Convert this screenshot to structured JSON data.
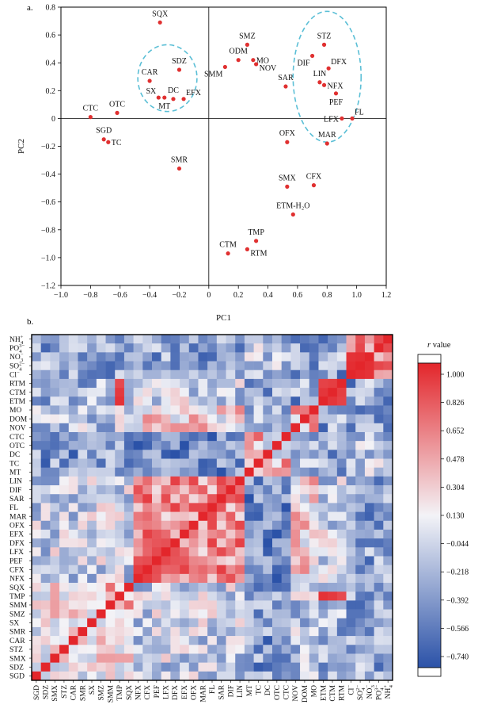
{
  "chart_data": [
    {
      "panel": "a.",
      "type": "scatter",
      "xlabel": "PC1",
      "ylabel": "PC2",
      "xlim": [
        -1.0,
        1.2
      ],
      "ylim": [
        -1.2,
        0.8
      ],
      "xticks": [
        -1.0,
        -0.8,
        -0.6,
        -0.4,
        -0.2,
        0,
        0.2,
        0.4,
        0.6,
        0.8,
        1.0,
        1.2
      ],
      "yticks": [
        0.8,
        0.6,
        0.4,
        0.2,
        0,
        -0.2,
        -0.4,
        -0.6,
        -0.8,
        -1.0,
        -1.2
      ],
      "point_color": "#e03030",
      "circle_color": "#5bbfd6",
      "points": [
        {
          "label": "SQX",
          "x": -0.33,
          "y": 0.69,
          "lpos": "above"
        },
        {
          "label": "SMZ",
          "x": 0.26,
          "y": 0.53,
          "lpos": "above"
        },
        {
          "label": "ODM",
          "x": 0.2,
          "y": 0.42,
          "lpos": "above"
        },
        {
          "label": "MO",
          "x": 0.3,
          "y": 0.42,
          "lpos": "right"
        },
        {
          "label": "NOV",
          "x": 0.32,
          "y": 0.39,
          "lpos": "right-low"
        },
        {
          "label": "SMM",
          "x": 0.11,
          "y": 0.37,
          "lpos": "below-left"
        },
        {
          "label": "SAR",
          "x": 0.52,
          "y": 0.23,
          "lpos": "above"
        },
        {
          "label": "STZ",
          "x": 0.78,
          "y": 0.53,
          "lpos": "above"
        },
        {
          "label": "DIF",
          "x": 0.7,
          "y": 0.45,
          "lpos": "below-left"
        },
        {
          "label": "DFX",
          "x": 0.81,
          "y": 0.36,
          "lpos": "above-right"
        },
        {
          "label": "LIN",
          "x": 0.75,
          "y": 0.26,
          "lpos": "above"
        },
        {
          "label": "NFX",
          "x": 0.78,
          "y": 0.24,
          "lpos": "right"
        },
        {
          "label": "PEF",
          "x": 0.86,
          "y": 0.18,
          "lpos": "below"
        },
        {
          "label": "LFX",
          "x": 0.9,
          "y": 0.0,
          "lpos": "left"
        },
        {
          "label": "FL",
          "x": 0.97,
          "y": 0.0,
          "lpos": "above-right"
        },
        {
          "label": "CAR",
          "x": -0.4,
          "y": 0.27,
          "lpos": "above"
        },
        {
          "label": "SDZ",
          "x": -0.2,
          "y": 0.35,
          "lpos": "above"
        },
        {
          "label": "SX",
          "x": -0.34,
          "y": 0.15,
          "lpos": "above-left"
        },
        {
          "label": "MT",
          "x": -0.3,
          "y": 0.15,
          "lpos": "below"
        },
        {
          "label": "DC",
          "x": -0.24,
          "y": 0.14,
          "lpos": "above"
        },
        {
          "label": "EFX",
          "x": -0.17,
          "y": 0.14,
          "lpos": "above-right"
        },
        {
          "label": "CTC",
          "x": -0.8,
          "y": 0.01,
          "lpos": "above"
        },
        {
          "label": "OTC",
          "x": -0.62,
          "y": 0.04,
          "lpos": "above"
        },
        {
          "label": "SGD",
          "x": -0.71,
          "y": -0.15,
          "lpos": "above"
        },
        {
          "label": "TC",
          "x": -0.68,
          "y": -0.17,
          "lpos": "right"
        },
        {
          "label": "OFX",
          "x": 0.53,
          "y": -0.17,
          "lpos": "above"
        },
        {
          "label": "MAR",
          "x": 0.8,
          "y": -0.18,
          "lpos": "above"
        },
        {
          "label": "SMR",
          "x": -0.2,
          "y": -0.36,
          "lpos": "above"
        },
        {
          "label": "SMX",
          "x": 0.53,
          "y": -0.49,
          "lpos": "above"
        },
        {
          "label": "CFX",
          "x": 0.71,
          "y": -0.48,
          "lpos": "above"
        },
        {
          "label": "ETM-H₂O",
          "x": 0.57,
          "y": -0.69,
          "lpos": "above"
        },
        {
          "label": "TMP",
          "x": 0.32,
          "y": -0.88,
          "lpos": "above"
        },
        {
          "label": "CTM",
          "x": 0.13,
          "y": -0.97,
          "lpos": "above"
        },
        {
          "label": "RTM",
          "x": 0.26,
          "y": -0.94,
          "lpos": "right-low"
        }
      ],
      "clusters": [
        {
          "cx": -0.28,
          "cy": 0.29,
          "rx": 0.2,
          "ry": 0.24
        },
        {
          "cx": 0.8,
          "cy": 0.3,
          "rx": 0.23,
          "ry": 0.47
        }
      ]
    },
    {
      "panel": "b.",
      "type": "heatmap",
      "rows": [
        "NH4+",
        "PO43-",
        "NO3-",
        "SO42-",
        "Cl-",
        "RTM",
        "CTM",
        "ETM",
        "MO",
        "DOM",
        "NOV",
        "CTC",
        "OTC",
        "DC",
        "TC",
        "MT",
        "LIN",
        "DIF",
        "SAR",
        "FL",
        "MAR",
        "OFX",
        "EFX",
        "DFX",
        "LFX",
        "PEF",
        "CFX",
        "NFX",
        "SQX",
        "TMP",
        "SMM",
        "SMZ",
        "SX",
        "SMR",
        "CAR",
        "STZ",
        "SMX",
        "SDZ",
        "SGD"
      ],
      "columns": [
        "SGD",
        "SDZ",
        "SMX",
        "STZ",
        "CAR",
        "SMR",
        "SX",
        "SMZ",
        "SMM",
        "TMP",
        "SQX",
        "NFX",
        "CFX",
        "PEF",
        "LFX",
        "DFX",
        "EFX",
        "OFX",
        "MAR",
        "FL",
        "SAR",
        "DIF",
        "LIN",
        "MT",
        "TC",
        "DC",
        "OTC",
        "CTC",
        "NOV",
        "DOM",
        "MO",
        "ETM",
        "CTM",
        "RTM",
        "Cl-",
        "SO42-",
        "NO3-",
        "PO43-",
        "NH4+"
      ],
      "row_labels": [
        {
          "t": "NH",
          "sub": "4",
          "sup": "+"
        },
        {
          "t": "PO",
          "sub": "4",
          "sup": "3−"
        },
        {
          "t": "NO",
          "sub": "3",
          "sup": "−"
        },
        {
          "t": "SO",
          "sub": "4",
          "sup": "2−"
        },
        {
          "t": "Cl",
          "sub": "",
          "sup": "−"
        },
        {
          "t": "RTM"
        },
        {
          "t": "CTM"
        },
        {
          "t": "ETM"
        },
        {
          "t": "MO"
        },
        {
          "t": "DOM"
        },
        {
          "t": "NOV"
        },
        {
          "t": "CTC"
        },
        {
          "t": "OTC"
        },
        {
          "t": "DC"
        },
        {
          "t": "TC"
        },
        {
          "t": "MT"
        },
        {
          "t": "LIN"
        },
        {
          "t": "DIF"
        },
        {
          "t": "SAR"
        },
        {
          "t": "FL"
        },
        {
          "t": "MAR"
        },
        {
          "t": "OFX"
        },
        {
          "t": "EFX"
        },
        {
          "t": "DFX"
        },
        {
          "t": "LFX"
        },
        {
          "t": "PEF"
        },
        {
          "t": "CFX"
        },
        {
          "t": "NFX"
        },
        {
          "t": "SQX"
        },
        {
          "t": "TMP"
        },
        {
          "t": "SMM"
        },
        {
          "t": "SMZ"
        },
        {
          "t": "SX"
        },
        {
          "t": "SMR"
        },
        {
          "t": "CAR"
        },
        {
          "t": "STZ"
        },
        {
          "t": "SMX"
        },
        {
          "t": "SDZ"
        },
        {
          "t": "SGD"
        }
      ],
      "col_labels": [
        {
          "t": "SGD"
        },
        {
          "t": "SDZ"
        },
        {
          "t": "SMX"
        },
        {
          "t": "STZ"
        },
        {
          "t": "CAR"
        },
        {
          "t": "SMR"
        },
        {
          "t": "SX"
        },
        {
          "t": "SMZ"
        },
        {
          "t": "SMM"
        },
        {
          "t": "TMP"
        },
        {
          "t": "SQX"
        },
        {
          "t": "NFX"
        },
        {
          "t": "CFX"
        },
        {
          "t": "PEF"
        },
        {
          "t": "LFX"
        },
        {
          "t": "DFX"
        },
        {
          "t": "EFX"
        },
        {
          "t": "OFX"
        },
        {
          "t": "MAR"
        },
        {
          "t": "FL"
        },
        {
          "t": "SAR"
        },
        {
          "t": "DIF"
        },
        {
          "t": "LIN"
        },
        {
          "t": "MT"
        },
        {
          "t": "TC"
        },
        {
          "t": "DC"
        },
        {
          "t": "OTC"
        },
        {
          "t": "CTC"
        },
        {
          "t": "NOV"
        },
        {
          "t": "DOM"
        },
        {
          "t": "MO"
        },
        {
          "t": "ETM"
        },
        {
          "t": "CTM"
        },
        {
          "t": "RTM"
        },
        {
          "t": "Cl",
          "sub": "",
          "sup": "−"
        },
        {
          "t": "SO",
          "sub": "4",
          "sup": "2−"
        },
        {
          "t": "NO",
          "sub": "3",
          "sup": "−"
        },
        {
          "t": "PO",
          "sub": "4",
          "sup": "3−"
        },
        {
          "t": "NH",
          "sub": "4",
          "sup": "+"
        }
      ],
      "groups": [
        [
          "SGD",
          "SDZ",
          "SMX",
          "STZ",
          "CAR",
          "SMR",
          "SX",
          "SMZ",
          "SMM",
          "TMP",
          "SQX"
        ],
        [
          "NFX",
          "CFX",
          "PEF",
          "LFX",
          "DFX",
          "EFX",
          "OFX",
          "MAR",
          "FL",
          "SAR",
          "DIF",
          "LIN"
        ],
        [
          "MT",
          "TC",
          "DC",
          "OTC",
          "CTC"
        ],
        [
          "NOV",
          "DOM",
          "MO"
        ],
        [
          "ETM",
          "CTM",
          "RTM"
        ],
        [
          "Cl-",
          "SO42-",
          "NO3-",
          "PO43-",
          "NH4+"
        ]
      ],
      "group_corr": [
        [
          0.15,
          -0.05,
          -0.35,
          -0.1,
          -0.2,
          -0.3
        ],
        [
          -0.05,
          0.55,
          -0.45,
          0.25,
          -0.05,
          -0.3
        ],
        [
          -0.35,
          -0.45,
          0.2,
          -0.2,
          -0.25,
          -0.1
        ],
        [
          -0.1,
          0.25,
          -0.2,
          0.1,
          -0.3,
          -0.25
        ],
        [
          -0.2,
          -0.05,
          -0.25,
          -0.3,
          0.7,
          -0.3
        ],
        [
          -0.3,
          -0.3,
          -0.1,
          -0.25,
          -0.3,
          0.6
        ]
      ],
      "strong_pairs": [
        {
          "a": "TMP",
          "b": "ETM",
          "v": 0.95
        },
        {
          "a": "TMP",
          "b": "CTM",
          "v": 0.92
        },
        {
          "a": "TMP",
          "b": "RTM",
          "v": 0.85
        },
        {
          "a": "ETM",
          "b": "CTM",
          "v": 0.93
        },
        {
          "a": "CTM",
          "b": "RTM",
          "v": 0.9
        },
        {
          "a": "ETM",
          "b": "RTM",
          "v": 0.88
        },
        {
          "a": "Cl-",
          "b": "SO42-",
          "v": 0.97
        },
        {
          "a": "Cl-",
          "b": "NO3-",
          "v": 0.95
        },
        {
          "a": "SO42-",
          "b": "NO3-",
          "v": 0.96
        },
        {
          "a": "PO43-",
          "b": "NH4+",
          "v": 0.85
        },
        {
          "a": "LFX",
          "b": "PEF",
          "v": 0.85
        },
        {
          "a": "DFX",
          "b": "PEF",
          "v": 0.8
        },
        {
          "a": "DFX",
          "b": "LFX",
          "v": 0.82
        },
        {
          "a": "FL",
          "b": "MAR",
          "v": 0.85
        },
        {
          "a": "FL",
          "b": "SAR",
          "v": 0.8
        },
        {
          "a": "DIF",
          "b": "SAR",
          "v": 0.78
        },
        {
          "a": "SQX",
          "b": "SMM",
          "v": 0.7
        },
        {
          "a": "TC",
          "b": "CTC",
          "v": 0.75
        },
        {
          "a": "MO",
          "b": "NOV",
          "v": 0.7
        },
        {
          "a": "DOM",
          "b": "MO",
          "v": 0.65
        }
      ],
      "colorbar": {
        "title": "r value",
        "min": -0.74,
        "max": 1.0,
        "ticks": [
          "1.000",
          "0.826",
          "0.652",
          "0.478",
          "0.304",
          "0.130",
          "−0.044",
          "−0.218",
          "−0.392",
          "−0.566",
          "−0.740"
        ],
        "low_color": "#2b52a8",
        "mid_color": "#f3f3f7",
        "high_color": "#e3262b"
      }
    }
  ]
}
